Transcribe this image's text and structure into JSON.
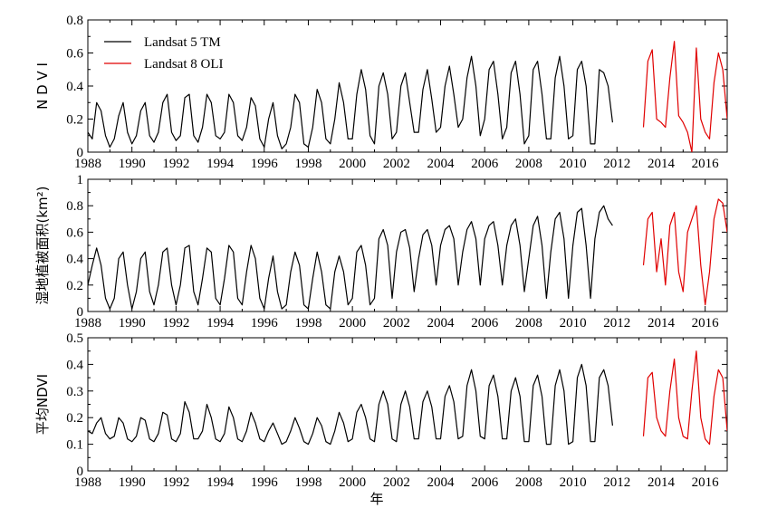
{
  "chart_data": [
    {
      "type": "line",
      "ylabel": "N D V I",
      "xlim": [
        1988,
        2017
      ],
      "ylim": [
        0,
        0.8
      ],
      "x_ticks": [
        "1988",
        "1990",
        "1992",
        "1994",
        "1996",
        "1998",
        "2000",
        "2002",
        "2004",
        "2006",
        "2008",
        "2010",
        "2012",
        "2014",
        "2016"
      ],
      "y_ticks": [
        "0",
        "0.2",
        "0.4",
        "0.6",
        "0.8"
      ],
      "legend": {
        "placement": "top-left",
        "entries": [
          "Landsat 5 TM",
          "Landsat 8 OLI"
        ]
      },
      "series": [
        {
          "name": "Landsat 5 TM",
          "color": "#000000",
          "x": [
            1988.0,
            1988.2,
            1988.4,
            1988.6,
            1988.8,
            1989.0,
            1989.2,
            1989.4,
            1989.6,
            1989.8,
            1990.0,
            1990.2,
            1990.4,
            1990.6,
            1990.8,
            1991.0,
            1991.2,
            1991.4,
            1991.6,
            1991.8,
            1992.0,
            1992.2,
            1992.4,
            1992.6,
            1992.8,
            1993.0,
            1993.2,
            1993.4,
            1993.6,
            1993.8,
            1994.0,
            1994.2,
            1994.4,
            1994.6,
            1994.8,
            1995.0,
            1995.2,
            1995.4,
            1995.6,
            1995.8,
            1996.0,
            1996.2,
            1996.4,
            1996.6,
            1996.8,
            1997.0,
            1997.2,
            1997.4,
            1997.6,
            1997.8,
            1998.0,
            1998.2,
            1998.4,
            1998.6,
            1998.8,
            1999.0,
            1999.2,
            1999.4,
            1999.6,
            1999.8,
            2000.0,
            2000.2,
            2000.4,
            2000.6,
            2000.8,
            2001.0,
            2001.2,
            2001.4,
            2001.6,
            2001.8,
            2002.0,
            2002.2,
            2002.4,
            2002.6,
            2002.8,
            2003.0,
            2003.2,
            2003.4,
            2003.6,
            2003.8,
            2004.0,
            2004.2,
            2004.4,
            2004.6,
            2004.8,
            2005.0,
            2005.2,
            2005.4,
            2005.6,
            2005.8,
            2006.0,
            2006.2,
            2006.4,
            2006.6,
            2006.8,
            2007.0,
            2007.2,
            2007.4,
            2007.6,
            2007.8,
            2008.0,
            2008.2,
            2008.4,
            2008.6,
            2008.8,
            2009.0,
            2009.2,
            2009.4,
            2009.6,
            2009.8,
            2010.0,
            2010.2,
            2010.4,
            2010.6,
            2010.8,
            2011.0,
            2011.2,
            2011.4,
            2011.6,
            2011.8
          ],
          "y": [
            0.12,
            0.08,
            0.3,
            0.25,
            0.1,
            0.03,
            0.08,
            0.22,
            0.3,
            0.12,
            0.05,
            0.1,
            0.25,
            0.3,
            0.1,
            0.06,
            0.12,
            0.3,
            0.35,
            0.12,
            0.07,
            0.1,
            0.33,
            0.35,
            0.1,
            0.06,
            0.15,
            0.35,
            0.3,
            0.1,
            0.08,
            0.12,
            0.35,
            0.3,
            0.1,
            0.07,
            0.15,
            0.33,
            0.28,
            0.08,
            0.03,
            0.2,
            0.3,
            0.1,
            0.02,
            0.05,
            0.15,
            0.35,
            0.3,
            0.05,
            0.03,
            0.15,
            0.38,
            0.3,
            0.08,
            0.05,
            0.2,
            0.42,
            0.3,
            0.08,
            0.08,
            0.35,
            0.5,
            0.38,
            0.1,
            0.05,
            0.4,
            0.48,
            0.35,
            0.08,
            0.12,
            0.4,
            0.48,
            0.3,
            0.12,
            0.12,
            0.38,
            0.5,
            0.32,
            0.12,
            0.15,
            0.4,
            0.52,
            0.35,
            0.15,
            0.2,
            0.45,
            0.58,
            0.4,
            0.1,
            0.2,
            0.5,
            0.55,
            0.35,
            0.08,
            0.15,
            0.48,
            0.55,
            0.35,
            0.05,
            0.1,
            0.5,
            0.55,
            0.35,
            0.08,
            0.08,
            0.45,
            0.58,
            0.4,
            0.08,
            0.1,
            0.5,
            0.55,
            0.4,
            0.05,
            0.05,
            0.5,
            0.48,
            0.4,
            0.18
          ]
        },
        {
          "name": "Landsat 8 OLI",
          "color": "#e00000",
          "x": [
            2013.2,
            2013.4,
            2013.6,
            2013.8,
            2014.0,
            2014.2,
            2014.4,
            2014.6,
            2014.8,
            2015.0,
            2015.2,
            2015.4,
            2015.6,
            2015.8,
            2016.0,
            2016.2,
            2016.4,
            2016.6,
            2016.8,
            2017.0
          ],
          "y": [
            0.15,
            0.55,
            0.62,
            0.2,
            0.18,
            0.15,
            0.45,
            0.67,
            0.22,
            0.18,
            0.12,
            0.0,
            0.63,
            0.2,
            0.12,
            0.08,
            0.42,
            0.6,
            0.5,
            0.2
          ]
        }
      ]
    },
    {
      "type": "line",
      "ylabel": "湿地植被面积(km²)",
      "xlim": [
        1988,
        2017
      ],
      "ylim": [
        0,
        1
      ],
      "x_ticks": [
        "1988",
        "1990",
        "1992",
        "1994",
        "1996",
        "1998",
        "2000",
        "2002",
        "2004",
        "2006",
        "2008",
        "2010",
        "2012",
        "2014",
        "2016"
      ],
      "y_ticks": [
        "0",
        "0.2",
        "0.4",
        "0.6",
        "0.8",
        "1"
      ],
      "series": [
        {
          "name": "Landsat 5 TM",
          "color": "#000000",
          "x": [
            1988.0,
            1988.2,
            1988.4,
            1988.6,
            1988.8,
            1989.0,
            1989.2,
            1989.4,
            1989.6,
            1989.8,
            1990.0,
            1990.2,
            1990.4,
            1990.6,
            1990.8,
            1991.0,
            1991.2,
            1991.4,
            1991.6,
            1991.8,
            1992.0,
            1992.2,
            1992.4,
            1992.6,
            1992.8,
            1993.0,
            1993.2,
            1993.4,
            1993.6,
            1993.8,
            1994.0,
            1994.2,
            1994.4,
            1994.6,
            1994.8,
            1995.0,
            1995.2,
            1995.4,
            1995.6,
            1995.8,
            1996.0,
            1996.2,
            1996.4,
            1996.6,
            1996.8,
            1997.0,
            1997.2,
            1997.4,
            1997.6,
            1997.8,
            1998.0,
            1998.2,
            1998.4,
            1998.6,
            1998.8,
            1999.0,
            1999.2,
            1999.4,
            1999.6,
            1999.8,
            2000.0,
            2000.2,
            2000.4,
            2000.6,
            2000.8,
            2001.0,
            2001.2,
            2001.4,
            2001.6,
            2001.8,
            2002.0,
            2002.2,
            2002.4,
            2002.6,
            2002.8,
            2003.0,
            2003.2,
            2003.4,
            2003.6,
            2003.8,
            2004.0,
            2004.2,
            2004.4,
            2004.6,
            2004.8,
            2005.0,
            2005.2,
            2005.4,
            2005.6,
            2005.8,
            2006.0,
            2006.2,
            2006.4,
            2006.6,
            2006.8,
            2007.0,
            2007.2,
            2007.4,
            2007.6,
            2007.8,
            2008.0,
            2008.2,
            2008.4,
            2008.6,
            2008.8,
            2009.0,
            2009.2,
            2009.4,
            2009.6,
            2009.8,
            2010.0,
            2010.2,
            2010.4,
            2010.6,
            2010.8,
            2011.0,
            2011.2,
            2011.4,
            2011.6,
            2011.8
          ],
          "y": [
            0.2,
            0.35,
            0.48,
            0.35,
            0.1,
            0.02,
            0.1,
            0.4,
            0.45,
            0.2,
            0.02,
            0.15,
            0.4,
            0.45,
            0.15,
            0.05,
            0.2,
            0.45,
            0.48,
            0.2,
            0.05,
            0.2,
            0.48,
            0.5,
            0.15,
            0.05,
            0.25,
            0.48,
            0.45,
            0.1,
            0.05,
            0.25,
            0.5,
            0.45,
            0.1,
            0.05,
            0.3,
            0.5,
            0.4,
            0.1,
            0.02,
            0.25,
            0.42,
            0.15,
            0.02,
            0.05,
            0.3,
            0.45,
            0.35,
            0.05,
            0.02,
            0.25,
            0.45,
            0.3,
            0.05,
            0.02,
            0.3,
            0.42,
            0.3,
            0.05,
            0.1,
            0.45,
            0.5,
            0.35,
            0.05,
            0.1,
            0.55,
            0.62,
            0.5,
            0.1,
            0.45,
            0.6,
            0.62,
            0.48,
            0.15,
            0.4,
            0.58,
            0.62,
            0.5,
            0.2,
            0.5,
            0.62,
            0.65,
            0.55,
            0.2,
            0.45,
            0.62,
            0.68,
            0.55,
            0.2,
            0.55,
            0.65,
            0.68,
            0.5,
            0.2,
            0.5,
            0.65,
            0.7,
            0.5,
            0.15,
            0.4,
            0.65,
            0.72,
            0.5,
            0.1,
            0.45,
            0.7,
            0.75,
            0.55,
            0.1,
            0.5,
            0.75,
            0.78,
            0.5,
            0.1,
            0.55,
            0.75,
            0.8,
            0.7,
            0.65
          ]
        },
        {
          "name": "Landsat 8 OLI",
          "color": "#e00000",
          "x": [
            2013.2,
            2013.4,
            2013.6,
            2013.8,
            2014.0,
            2014.2,
            2014.4,
            2014.6,
            2014.8,
            2015.0,
            2015.2,
            2015.4,
            2015.6,
            2015.8,
            2016.0,
            2016.2,
            2016.4,
            2016.6,
            2016.8,
            2017.0
          ],
          "y": [
            0.35,
            0.7,
            0.75,
            0.3,
            0.55,
            0.2,
            0.65,
            0.75,
            0.3,
            0.15,
            0.6,
            0.7,
            0.8,
            0.35,
            0.05,
            0.3,
            0.7,
            0.85,
            0.82,
            0.6
          ]
        }
      ]
    },
    {
      "type": "line",
      "ylabel": "平均NDVI",
      "xlabel": "年",
      "xlim": [
        1988,
        2017
      ],
      "ylim": [
        0,
        0.5
      ],
      "x_ticks": [
        "1988",
        "1990",
        "1992",
        "1994",
        "1996",
        "1998",
        "2000",
        "2002",
        "2004",
        "2006",
        "2008",
        "2010",
        "2012",
        "2014",
        "2016"
      ],
      "y_ticks": [
        "0",
        "0.1",
        "0.2",
        "0.3",
        "0.4",
        "0.5"
      ],
      "series": [
        {
          "name": "Landsat 5 TM",
          "color": "#000000",
          "x": [
            1988.0,
            1988.2,
            1988.4,
            1988.6,
            1988.8,
            1989.0,
            1989.2,
            1989.4,
            1989.6,
            1989.8,
            1990.0,
            1990.2,
            1990.4,
            1990.6,
            1990.8,
            1991.0,
            1991.2,
            1991.4,
            1991.6,
            1991.8,
            1992.0,
            1992.2,
            1992.4,
            1992.6,
            1992.8,
            1993.0,
            1993.2,
            1993.4,
            1993.6,
            1993.8,
            1994.0,
            1994.2,
            1994.4,
            1994.6,
            1994.8,
            1995.0,
            1995.2,
            1995.4,
            1995.6,
            1995.8,
            1996.0,
            1996.2,
            1996.4,
            1996.6,
            1996.8,
            1997.0,
            1997.2,
            1997.4,
            1997.6,
            1997.8,
            1998.0,
            1998.2,
            1998.4,
            1998.6,
            1998.8,
            1999.0,
            1999.2,
            1999.4,
            1999.6,
            1999.8,
            2000.0,
            2000.2,
            2000.4,
            2000.6,
            2000.8,
            2001.0,
            2001.2,
            2001.4,
            2001.6,
            2001.8,
            2002.0,
            2002.2,
            2002.4,
            2002.6,
            2002.8,
            2003.0,
            2003.2,
            2003.4,
            2003.6,
            2003.8,
            2004.0,
            2004.2,
            2004.4,
            2004.6,
            2004.8,
            2005.0,
            2005.2,
            2005.4,
            2005.6,
            2005.8,
            2006.0,
            2006.2,
            2006.4,
            2006.6,
            2006.8,
            2007.0,
            2007.2,
            2007.4,
            2007.6,
            2007.8,
            2008.0,
            2008.2,
            2008.4,
            2008.6,
            2008.8,
            2009.0,
            2009.2,
            2009.4,
            2009.6,
            2009.8,
            2010.0,
            2010.2,
            2010.4,
            2010.6,
            2010.8,
            2011.0,
            2011.2,
            2011.4,
            2011.6,
            2011.8
          ],
          "y": [
            0.15,
            0.14,
            0.18,
            0.2,
            0.14,
            0.12,
            0.13,
            0.2,
            0.18,
            0.12,
            0.11,
            0.13,
            0.2,
            0.19,
            0.12,
            0.11,
            0.14,
            0.22,
            0.21,
            0.12,
            0.11,
            0.14,
            0.26,
            0.22,
            0.12,
            0.12,
            0.15,
            0.25,
            0.2,
            0.12,
            0.11,
            0.14,
            0.24,
            0.2,
            0.12,
            0.11,
            0.15,
            0.22,
            0.18,
            0.12,
            0.11,
            0.15,
            0.18,
            0.14,
            0.1,
            0.11,
            0.15,
            0.2,
            0.16,
            0.11,
            0.1,
            0.14,
            0.2,
            0.17,
            0.11,
            0.1,
            0.15,
            0.22,
            0.18,
            0.11,
            0.12,
            0.22,
            0.25,
            0.2,
            0.12,
            0.11,
            0.25,
            0.3,
            0.25,
            0.12,
            0.11,
            0.25,
            0.3,
            0.24,
            0.12,
            0.12,
            0.26,
            0.3,
            0.24,
            0.12,
            0.12,
            0.28,
            0.32,
            0.26,
            0.12,
            0.13,
            0.32,
            0.38,
            0.3,
            0.13,
            0.12,
            0.32,
            0.36,
            0.28,
            0.12,
            0.12,
            0.3,
            0.35,
            0.28,
            0.11,
            0.11,
            0.32,
            0.36,
            0.28,
            0.1,
            0.1,
            0.32,
            0.38,
            0.3,
            0.1,
            0.11,
            0.35,
            0.4,
            0.32,
            0.11,
            0.11,
            0.35,
            0.38,
            0.32,
            0.17
          ]
        },
        {
          "name": "Landsat 8 OLI",
          "color": "#e00000",
          "x": [
            2013.2,
            2013.4,
            2013.6,
            2013.8,
            2014.0,
            2014.2,
            2014.4,
            2014.6,
            2014.8,
            2015.0,
            2015.2,
            2015.4,
            2015.6,
            2015.8,
            2016.0,
            2016.2,
            2016.4,
            2016.6,
            2016.8,
            2017.0
          ],
          "y": [
            0.13,
            0.35,
            0.37,
            0.2,
            0.15,
            0.13,
            0.3,
            0.42,
            0.2,
            0.13,
            0.12,
            0.3,
            0.45,
            0.2,
            0.12,
            0.1,
            0.28,
            0.38,
            0.35,
            0.15
          ]
        }
      ]
    }
  ]
}
